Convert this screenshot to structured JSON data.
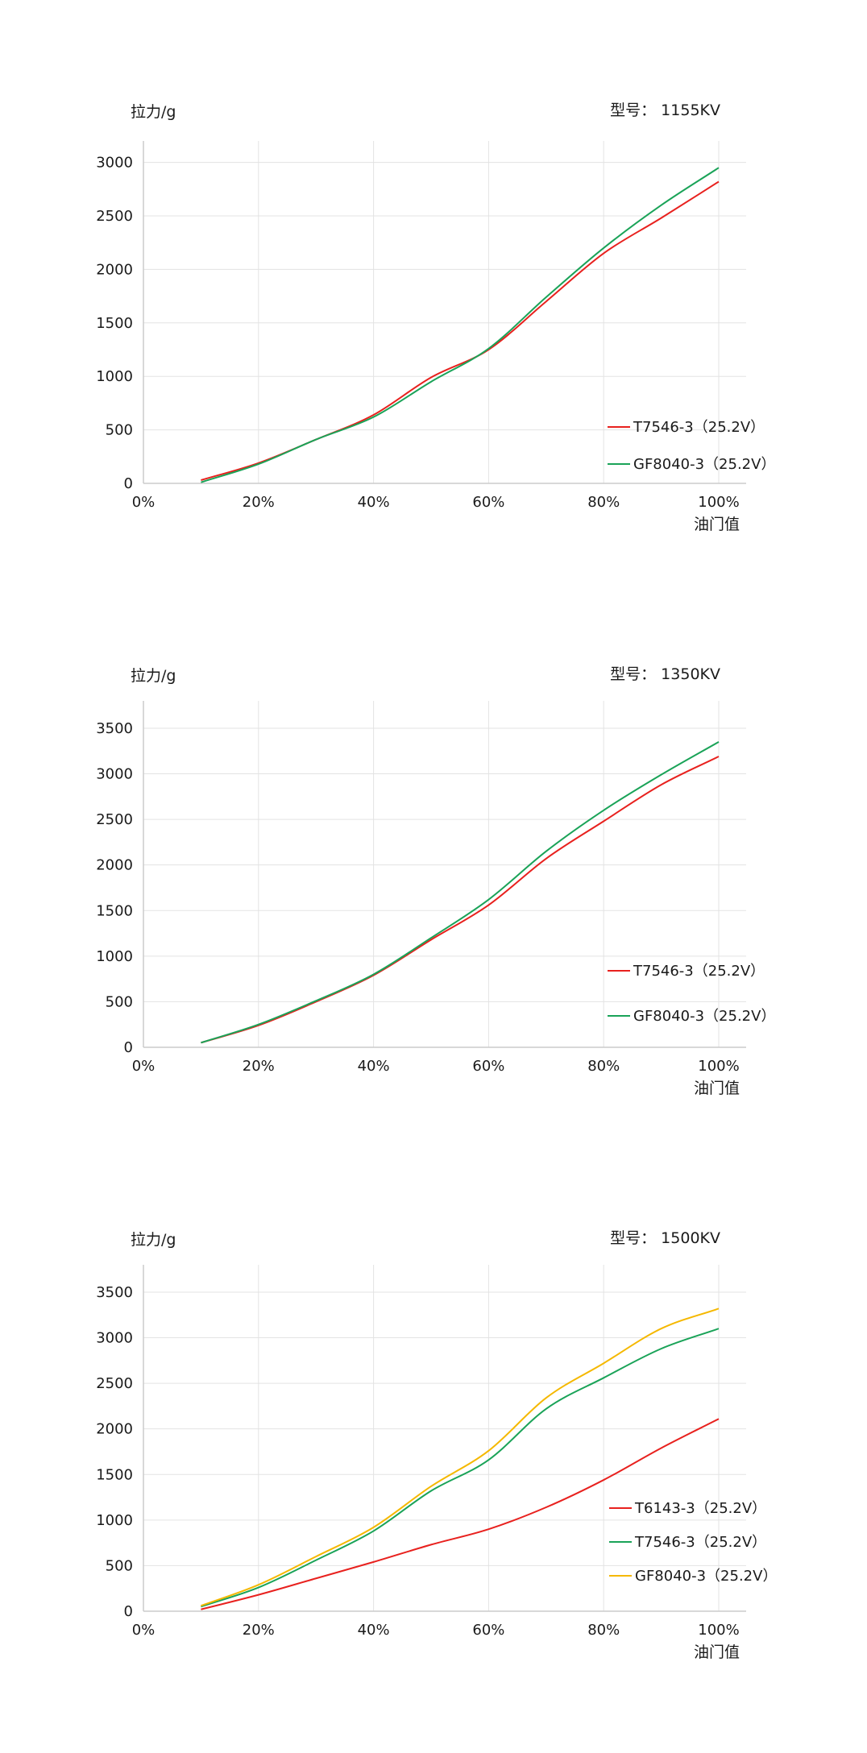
{
  "charts": [
    {
      "ylabel": "拉力/g",
      "model": "型号： 1155KV",
      "xlabel": "油门值"
    },
    {
      "ylabel": "拉力/g",
      "model": "型号： 1350KV",
      "xlabel": "油门值"
    },
    {
      "ylabel": "拉力/g",
      "model": "型号： 1500KV",
      "xlabel": "油门值"
    }
  ],
  "chart_data": [
    {
      "type": "line",
      "title": "",
      "ylabel": "拉力/g",
      "xlabel": "油门值",
      "model_label": "型号： 1155KV",
      "x_ticks": [
        "0%",
        "20%",
        "40%",
        "60%",
        "80%",
        "100%"
      ],
      "y_ticks": [
        "0",
        "500",
        "1000",
        "1500",
        "2000",
        "2500",
        "3000"
      ],
      "xlim": [
        0,
        100
      ],
      "ylim": [
        0,
        3200
      ],
      "legend_position": "bottom-right",
      "grid": true,
      "x": [
        10,
        20,
        30,
        40,
        50,
        60,
        70,
        80,
        90,
        100
      ],
      "series": [
        {
          "name": "T7546-3（25.2V）",
          "color": "#e8211e",
          "values": [
            30,
            190,
            410,
            640,
            990,
            1250,
            1700,
            2150,
            2480,
            2820
          ]
        },
        {
          "name": "GF8040-3（25.2V）",
          "color": "#1aa358",
          "values": [
            10,
            180,
            410,
            620,
            950,
            1260,
            1740,
            2200,
            2600,
            2950
          ]
        }
      ]
    },
    {
      "type": "line",
      "title": "",
      "ylabel": "拉力/g",
      "xlabel": "油门值",
      "model_label": "型号： 1350KV",
      "x_ticks": [
        "0%",
        "20%",
        "40%",
        "60%",
        "80%",
        "100%"
      ],
      "y_ticks": [
        "0",
        "500",
        "1000",
        "1500",
        "2000",
        "2500",
        "3000",
        "3500"
      ],
      "xlim": [
        0,
        100
      ],
      "ylim": [
        0,
        3800
      ],
      "legend_position": "bottom-right",
      "grid": true,
      "x": [
        10,
        20,
        30,
        40,
        50,
        60,
        70,
        80,
        90,
        100
      ],
      "series": [
        {
          "name": "T7546-3（25.2V）",
          "color": "#e8211e",
          "values": [
            50,
            240,
            500,
            790,
            1180,
            1560,
            2070,
            2480,
            2880,
            3190
          ]
        },
        {
          "name": "GF8040-3（25.2V）",
          "color": "#1aa358",
          "values": [
            50,
            250,
            510,
            800,
            1200,
            1620,
            2150,
            2600,
            2990,
            3350
          ]
        }
      ]
    },
    {
      "type": "line",
      "title": "",
      "ylabel": "拉力/g",
      "xlabel": "油门值",
      "model_label": "型号： 1500KV",
      "x_ticks": [
        "0%",
        "20%",
        "40%",
        "60%",
        "80%",
        "100%"
      ],
      "y_ticks": [
        "0",
        "500",
        "1000",
        "1500",
        "2000",
        "2500",
        "3000",
        "3500"
      ],
      "xlim": [
        0,
        100
      ],
      "ylim": [
        0,
        3800
      ],
      "legend_position": "bottom-right",
      "grid": true,
      "x": [
        10,
        20,
        30,
        40,
        50,
        60,
        70,
        80,
        90,
        100
      ],
      "series": [
        {
          "name": "T6143-3（25.2V）",
          "color": "#e8211e",
          "values": [
            20,
            180,
            360,
            540,
            730,
            900,
            1140,
            1440,
            1790,
            2110
          ]
        },
        {
          "name": "T7546-3（25.2V）",
          "color": "#1aa358",
          "values": [
            50,
            260,
            560,
            880,
            1320,
            1660,
            2220,
            2560,
            2880,
            3100
          ]
        },
        {
          "name": "GF8040-3（25.2V）",
          "color": "#f5b800",
          "values": [
            60,
            290,
            600,
            920,
            1370,
            1760,
            2340,
            2720,
            3100,
            3320
          ]
        }
      ]
    }
  ]
}
